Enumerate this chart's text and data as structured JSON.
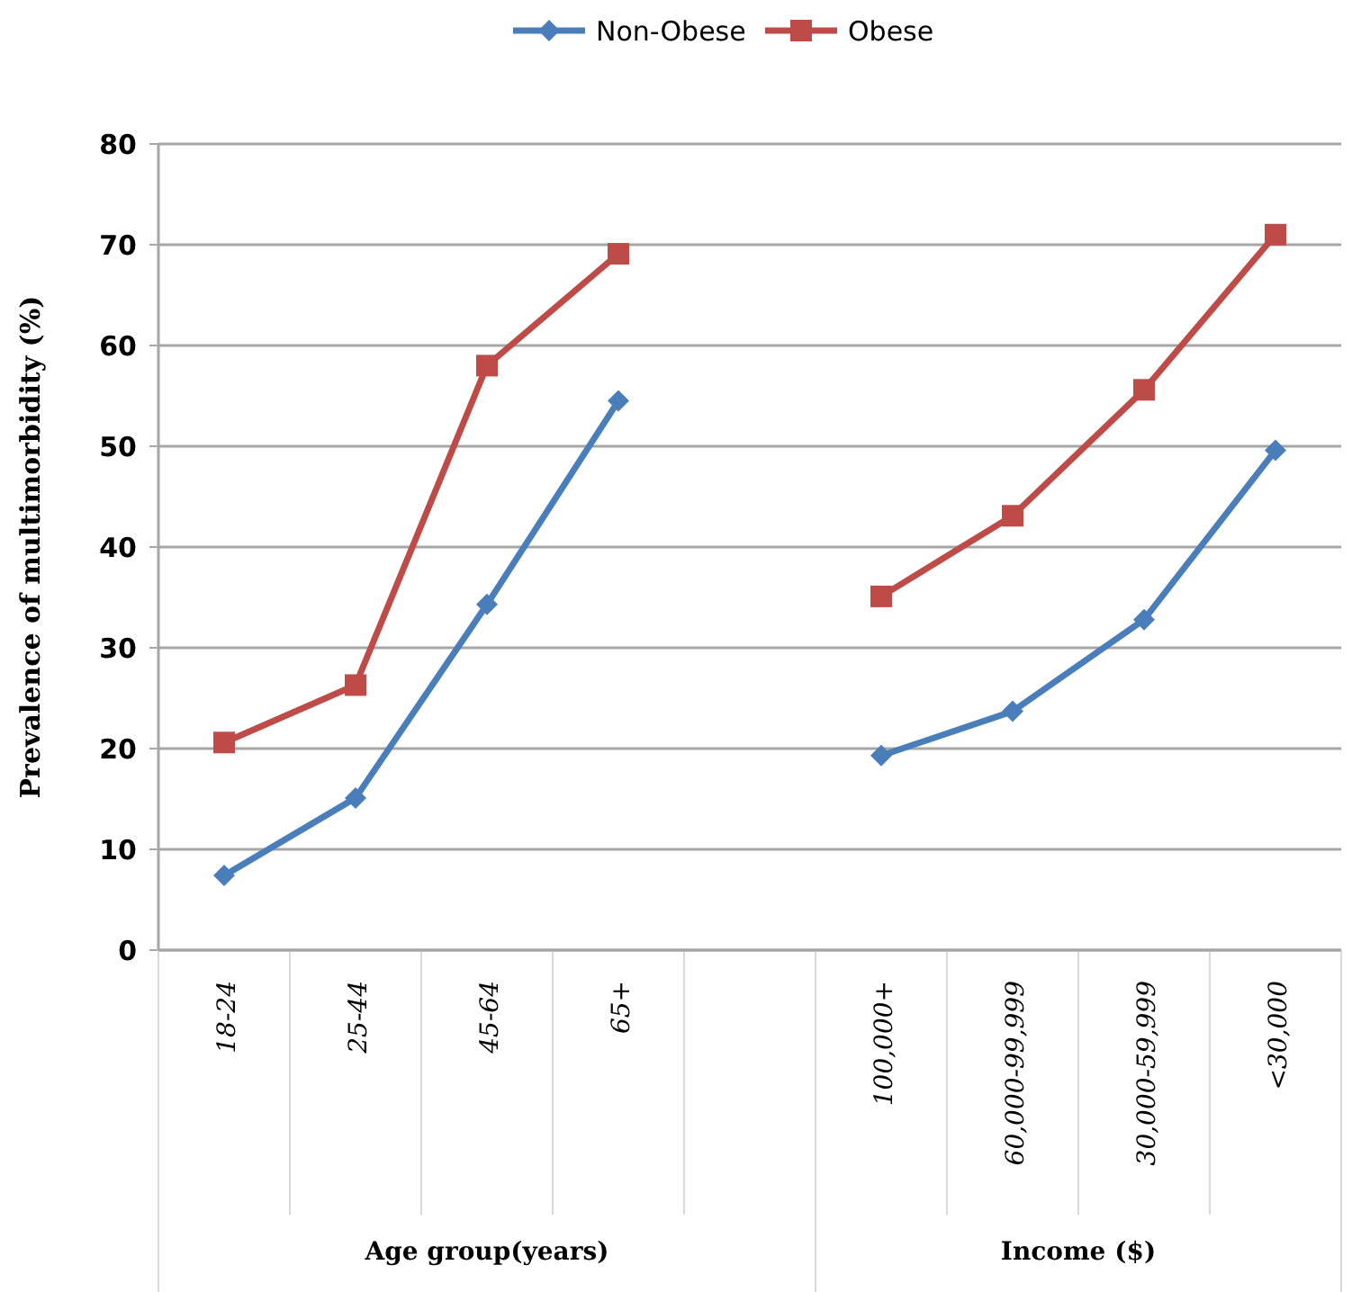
{
  "chart_data": {
    "type": "line",
    "ylabel": "Prevalence of multimorbidity (%)",
    "categories": [
      "18-24",
      "25-44",
      "45-64",
      "65+",
      null,
      "100,000+",
      "60,000-99,999",
      "30,000-59,999",
      "<30,000"
    ],
    "series": [
      {
        "name": "Non-Obese",
        "color": "#4a7ebb",
        "marker": "diamond",
        "values": [
          7.4,
          15.1,
          34.3,
          54.5,
          null,
          19.3,
          23.7,
          32.8,
          49.6
        ]
      },
      {
        "name": "Obese",
        "color": "#be4b48",
        "marker": "square",
        "values": [
          20.6,
          26.3,
          58.0,
          69.1,
          null,
          35.1,
          43.1,
          55.6,
          71.0
        ]
      }
    ],
    "ylim": [
      0,
      80
    ],
    "yticks": [
      0,
      10,
      20,
      30,
      40,
      50,
      60,
      70,
      80
    ],
    "grid": "y",
    "legend": "top",
    "annotations": [
      "Age group(years)",
      "Income ($)"
    ]
  }
}
